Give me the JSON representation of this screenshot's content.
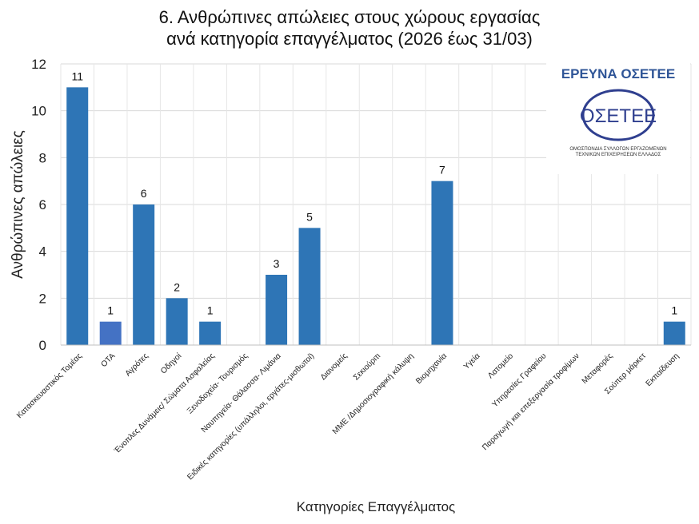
{
  "chart_data": {
    "type": "bar",
    "title": [
      "6. Ανθρώπινες απώλειες στους χώρους εργασίας",
      "ανά κατηγορία επαγγέλματος (2026 έως 31/03)"
    ],
    "xlabel": "Κατηγορίες Επαγγέλματος",
    "ylabel": "Ανθρώπινες απώλειες",
    "ylim": [
      0,
      12
    ],
    "yticks": [
      0,
      2,
      4,
      6,
      8,
      10,
      12
    ],
    "grid": true,
    "categories": [
      "Κατασκευαστικός Τομέας",
      "ΟΤΑ",
      "Αγρότες",
      "Οδηγοί",
      "Ένοπλες Δυνάμεις/ Σώματα Ασφαλείας",
      "Ξενοδοχεία- Τουρισμός",
      "Ναυπηγεία- Θάλασσα- Λιμάνια",
      "Ειδικές κατηγορίες (υπάλληλοι, εργάτες-μισθωτοί)",
      "Διανομείς",
      "Σεκιούριτι",
      "ΜΜΕ /Δημοσιογραφική κάλυψη",
      "Βιομηχανία",
      "Υγεία",
      "Λατομείο",
      "Υπηρεσίες Γραφείου",
      "Παραγωγή και επεξεργασία τροφίμων",
      "Μεταφορές",
      "Σούπερ μάρκετ",
      "Εκπαίδευση"
    ],
    "values": [
      11,
      1,
      6,
      2,
      1,
      0,
      3,
      5,
      0,
      0,
      0,
      7,
      0,
      0,
      0,
      0,
      0,
      0,
      1
    ],
    "bar_color": "#2e75b6",
    "highlight_color": "#4472c4",
    "highlight_index": 1
  },
  "logo": {
    "heading": "ΕΡΕΥΝΑ ΟΣΕΤΕΕ",
    "mark": "ΟΣΕΤΕΕ",
    "line1": "ΟΜΟΣΠΟΝΔΙΑ ΣΥΛΛΟΓΩΝ ΕΡΓΑΖΟΜΕΝΩΝ",
    "line2": "ΤΕΧΝΙΚΩΝ ΕΠΙΧΕΙΡΗΣΕΩΝ ΕΛΛΑΔΟΣ"
  }
}
